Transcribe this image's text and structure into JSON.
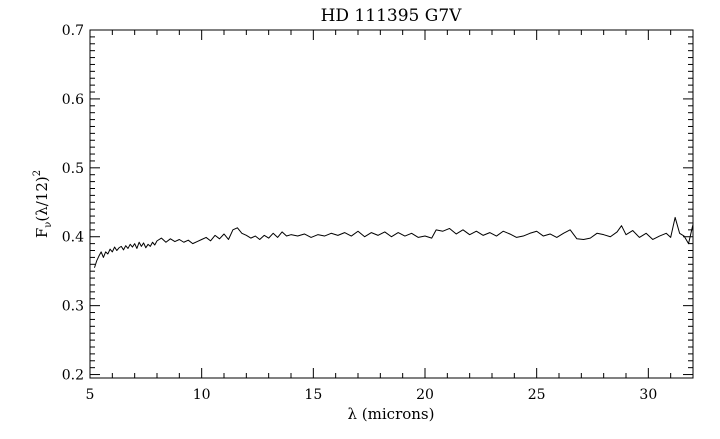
{
  "chart_data": {
    "type": "line",
    "title": "HD 111395 G7V",
    "xlabel": "λ (microns)",
    "ylabel": "F",
    "ylabel_sub": "ν",
    "ylabel_rest": "(λ/12)",
    "ylabel_sup": "2",
    "xlim": [
      5,
      32
    ],
    "ylim": [
      0.195,
      0.7
    ],
    "x_ticks": [
      5,
      10,
      15,
      20,
      25,
      30
    ],
    "x_tick_labels": [
      "5",
      "10",
      "15",
      "20",
      "25",
      "30"
    ],
    "y_ticks": [
      0.2,
      0.3,
      0.4,
      0.5,
      0.6,
      0.7
    ],
    "y_tick_labels": [
      "0.2",
      "0.3",
      "0.4",
      "0.5",
      "0.6",
      "0.7"
    ],
    "grid": false,
    "series": [
      {
        "line_color": "#000000",
        "x": [
          5.2,
          5.3,
          5.4,
          5.5,
          5.6,
          5.7,
          5.8,
          5.9,
          6.0,
          6.1,
          6.2,
          6.3,
          6.4,
          6.5,
          6.6,
          6.7,
          6.8,
          6.9,
          7.0,
          7.1,
          7.2,
          7.3,
          7.4,
          7.5,
          7.6,
          7.7,
          7.8,
          7.9,
          8.0,
          8.2,
          8.4,
          8.6,
          8.8,
          9.0,
          9.2,
          9.4,
          9.6,
          9.8,
          10.0,
          10.2,
          10.4,
          10.6,
          10.8,
          11.0,
          11.2,
          11.4,
          11.6,
          11.8,
          12.0,
          12.2,
          12.4,
          12.6,
          12.8,
          13.0,
          13.2,
          13.4,
          13.6,
          13.8,
          14.0,
          14.3,
          14.6,
          14.9,
          15.2,
          15.5,
          15.8,
          16.1,
          16.4,
          16.7,
          17.0,
          17.3,
          17.6,
          17.9,
          18.2,
          18.5,
          18.8,
          19.1,
          19.4,
          19.7,
          20.0,
          20.3,
          20.5,
          20.8,
          21.1,
          21.4,
          21.7,
          22.0,
          22.3,
          22.6,
          22.9,
          23.2,
          23.5,
          23.8,
          24.1,
          24.4,
          24.7,
          25.0,
          25.3,
          25.6,
          25.9,
          26.2,
          26.5,
          26.8,
          27.1,
          27.4,
          27.7,
          28.0,
          28.3,
          28.6,
          28.8,
          29.0,
          29.3,
          29.6,
          29.9,
          30.2,
          30.5,
          30.8,
          31.0,
          31.2,
          31.4,
          31.6,
          31.8,
          32.0
        ],
        "values": [
          0.355,
          0.365,
          0.372,
          0.378,
          0.37,
          0.378,
          0.375,
          0.382,
          0.378,
          0.385,
          0.38,
          0.384,
          0.386,
          0.381,
          0.387,
          0.383,
          0.389,
          0.385,
          0.39,
          0.383,
          0.392,
          0.386,
          0.391,
          0.384,
          0.389,
          0.386,
          0.392,
          0.388,
          0.394,
          0.398,
          0.392,
          0.397,
          0.393,
          0.396,
          0.392,
          0.395,
          0.39,
          0.393,
          0.396,
          0.399,
          0.394,
          0.402,
          0.397,
          0.404,
          0.396,
          0.41,
          0.413,
          0.405,
          0.402,
          0.398,
          0.401,
          0.396,
          0.402,
          0.398,
          0.405,
          0.399,
          0.407,
          0.401,
          0.403,
          0.401,
          0.404,
          0.399,
          0.403,
          0.401,
          0.405,
          0.402,
          0.406,
          0.401,
          0.408,
          0.4,
          0.406,
          0.402,
          0.407,
          0.4,
          0.406,
          0.401,
          0.405,
          0.399,
          0.401,
          0.398,
          0.41,
          0.408,
          0.412,
          0.404,
          0.41,
          0.403,
          0.408,
          0.402,
          0.406,
          0.401,
          0.408,
          0.404,
          0.399,
          0.401,
          0.405,
          0.408,
          0.401,
          0.404,
          0.399,
          0.405,
          0.41,
          0.397,
          0.396,
          0.398,
          0.405,
          0.403,
          0.4,
          0.407,
          0.416,
          0.403,
          0.409,
          0.399,
          0.405,
          0.396,
          0.401,
          0.405,
          0.399,
          0.428,
          0.405,
          0.401,
          0.39,
          0.418
        ]
      }
    ]
  }
}
